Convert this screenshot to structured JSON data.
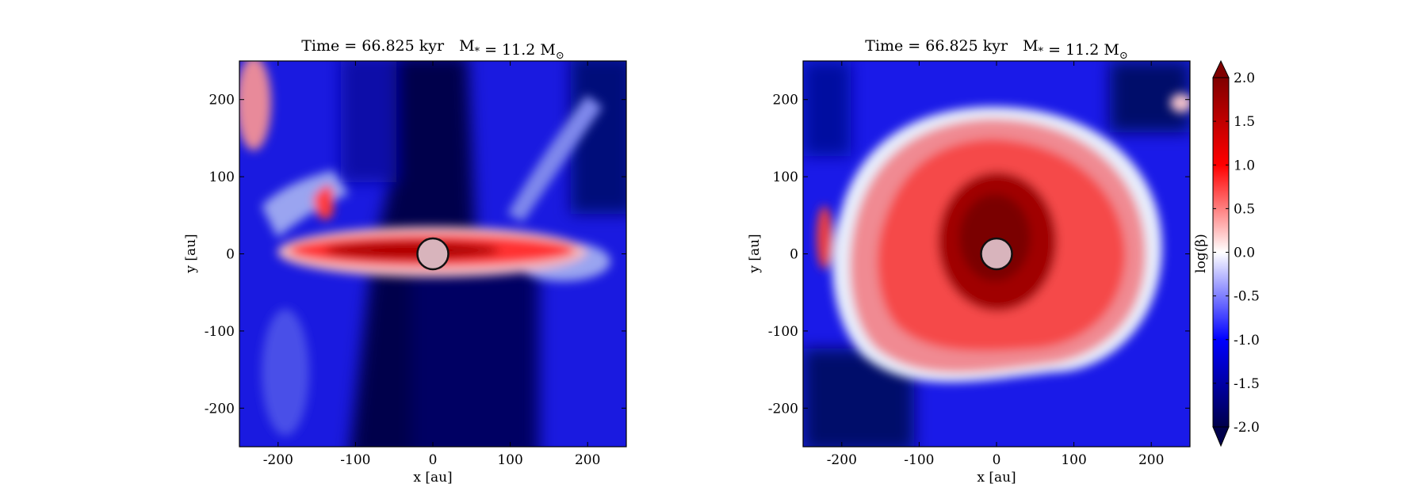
{
  "chart_data": [
    {
      "type": "heatmap",
      "title": "Time = 66.825 kyr    M$_*$ = 11.2 M$_\\odot$",
      "xlabel": "x [au]",
      "ylabel": "y [au]",
      "xlim": [
        -250,
        250
      ],
      "ylim": [
        -250,
        250
      ],
      "xticks": [
        -200,
        -100,
        0,
        100,
        200
      ],
      "yticks": [
        -200,
        -100,
        0,
        100,
        200
      ],
      "xtick_labels": [
        "-200",
        "-100",
        "0",
        "100",
        "200"
      ],
      "ytick_labels": [
        "-200",
        "-100",
        "0",
        "100",
        "200"
      ],
      "field": "log(β)",
      "view": "edge-on",
      "sink": {
        "x": 0,
        "y": 0,
        "radius": 20
      },
      "features": [
        {
          "desc": "disk",
          "x": [
            -180,
            160
          ],
          "y": [
            -20,
            40
          ],
          "value": 1.3
        },
        {
          "desc": "outflow cavity",
          "x": [
            -50,
            90
          ],
          "y": [
            -250,
            250
          ],
          "value": -2.0
        }
      ]
    },
    {
      "type": "heatmap",
      "title": "Time = 66.825 kyr    M$_*$ = 11.2 M$_\\odot$",
      "xlabel": "x [au]",
      "ylabel": "y [au]",
      "xlim": [
        -250,
        250
      ],
      "ylim": [
        -250,
        250
      ],
      "xticks": [
        -200,
        -100,
        0,
        100,
        200
      ],
      "yticks": [
        -200,
        -100,
        0,
        100,
        200
      ],
      "xtick_labels": [
        "-200",
        "-100",
        "0",
        "100",
        "200"
      ],
      "ytick_labels": [
        "-200",
        "-100",
        "0",
        "100",
        "200"
      ],
      "field": "log(β)",
      "view": "face-on",
      "sink": {
        "x": 0,
        "y": 0,
        "radius": 20
      },
      "features": [
        {
          "desc": "disk",
          "center": [
            10,
            0
          ],
          "radius": 200,
          "value": 0.6
        },
        {
          "desc": "core",
          "center": [
            0,
            10
          ],
          "radius": 80,
          "value": 1.8
        }
      ]
    }
  ],
  "colorbar": {
    "label": "log(β)",
    "vmin": -2.0,
    "vmax": 2.0,
    "ticks": [
      -2.0,
      -1.5,
      -1.0,
      -0.5,
      0.0,
      0.5,
      1.0,
      1.5,
      2.0
    ],
    "tick_labels": [
      "-2.0",
      "-1.5",
      "-1.0",
      "-0.5",
      "0.0",
      "0.5",
      "1.0",
      "1.5",
      "2.0"
    ],
    "colormap": "seismic",
    "colors": [
      "#00004c",
      "#0000ff",
      "#ffffff",
      "#ff0000",
      "#800000"
    ],
    "extend": "both"
  }
}
